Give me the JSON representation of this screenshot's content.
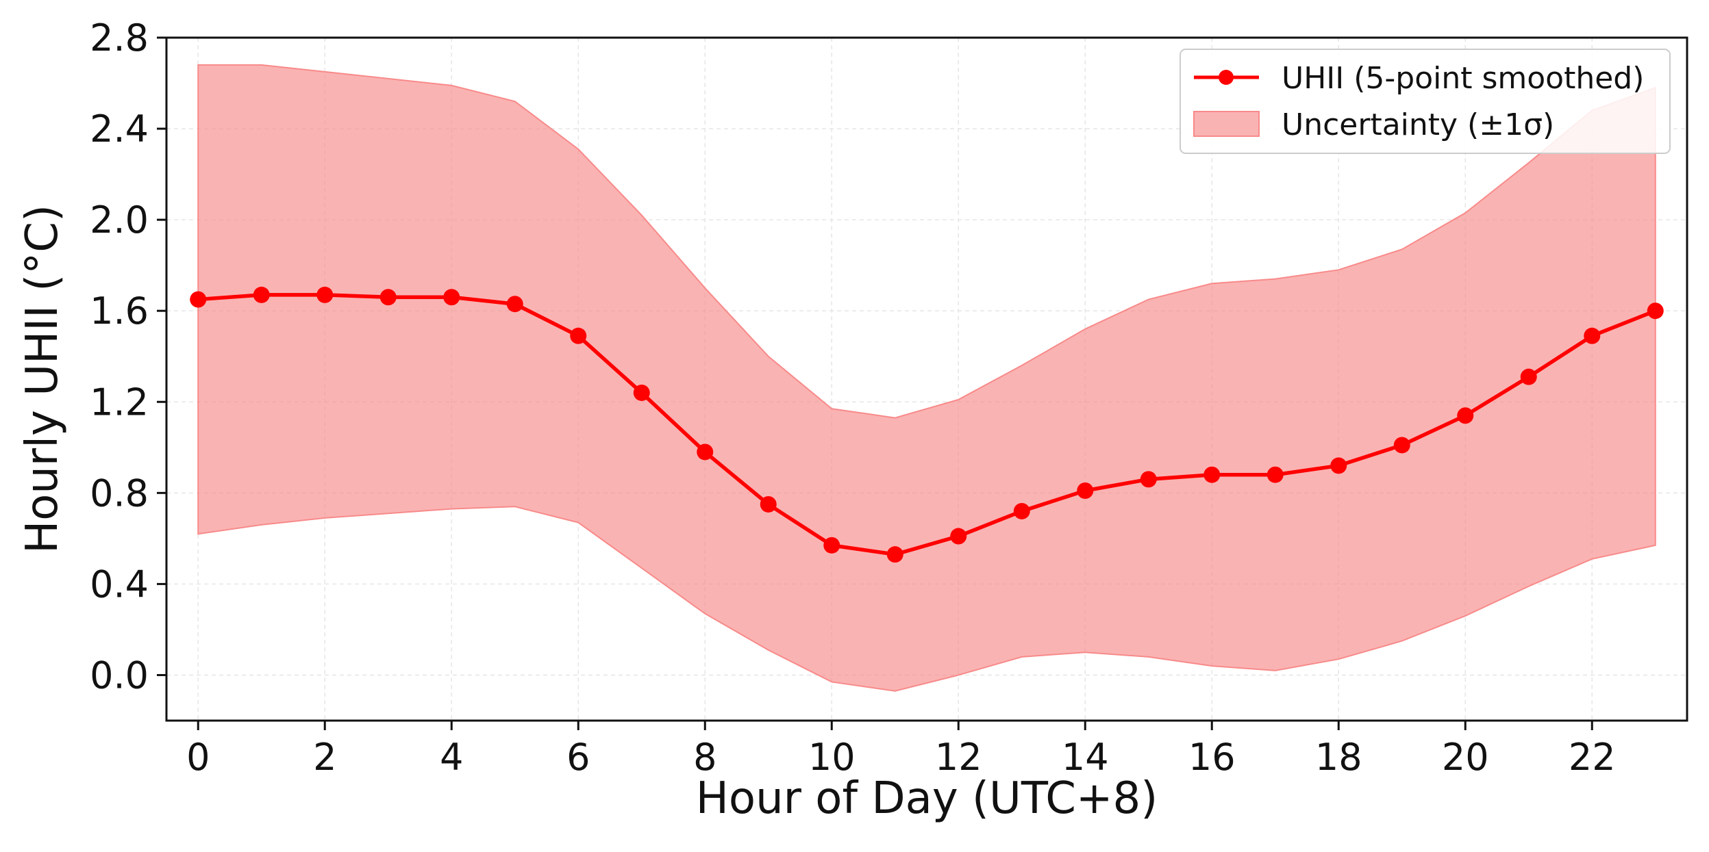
{
  "chart_data": {
    "type": "line",
    "title": "",
    "xlabel": "Hour of Day (UTC+8)",
    "ylabel": "Hourly UHII (°C)",
    "xlim": [
      -0.5,
      23.5
    ],
    "ylim": [
      -0.2,
      2.8
    ],
    "x_ticks": [
      0,
      2,
      4,
      6,
      8,
      10,
      12,
      14,
      16,
      18,
      20,
      22
    ],
    "x_tick_labels": [
      "0",
      "2",
      "4",
      "6",
      "8",
      "10",
      "12",
      "14",
      "16",
      "18",
      "20",
      "22"
    ],
    "y_ticks": [
      0.0,
      0.4,
      0.8,
      1.2,
      1.6,
      2.0,
      2.4,
      2.8
    ],
    "y_tick_labels": [
      "0.0",
      "0.4",
      "0.8",
      "1.2",
      "1.6",
      "2.0",
      "2.4",
      "2.8"
    ],
    "grid": true,
    "legend_position": "top-right",
    "x": [
      0,
      1,
      2,
      3,
      4,
      5,
      6,
      7,
      8,
      9,
      10,
      11,
      12,
      13,
      14,
      15,
      16,
      17,
      18,
      19,
      20,
      21,
      22,
      23
    ],
    "series": [
      {
        "name": "UHII (5-point smoothed)",
        "kind": "line-markers",
        "color": "#ff0000",
        "values": [
          1.65,
          1.67,
          1.67,
          1.66,
          1.66,
          1.63,
          1.49,
          1.24,
          0.98,
          0.75,
          0.57,
          0.53,
          0.61,
          0.72,
          0.81,
          0.86,
          0.88,
          0.88,
          0.92,
          1.01,
          1.14,
          1.31,
          1.49,
          1.6
        ]
      },
      {
        "name": "Uncertainty (±1σ)",
        "kind": "band",
        "color": "#f88a8a",
        "upper": [
          2.68,
          2.68,
          2.65,
          2.62,
          2.59,
          2.52,
          2.31,
          2.02,
          1.7,
          1.4,
          1.17,
          1.13,
          1.21,
          1.36,
          1.52,
          1.65,
          1.72,
          1.74,
          1.78,
          1.87,
          2.03,
          2.25,
          2.48,
          2.58
        ],
        "lower": [
          0.62,
          0.66,
          0.69,
          0.71,
          0.73,
          0.74,
          0.67,
          0.47,
          0.27,
          0.11,
          -0.03,
          -0.07,
          0.0,
          0.08,
          0.1,
          0.08,
          0.04,
          0.02,
          0.07,
          0.15,
          0.26,
          0.39,
          0.51,
          0.57
        ]
      }
    ]
  }
}
